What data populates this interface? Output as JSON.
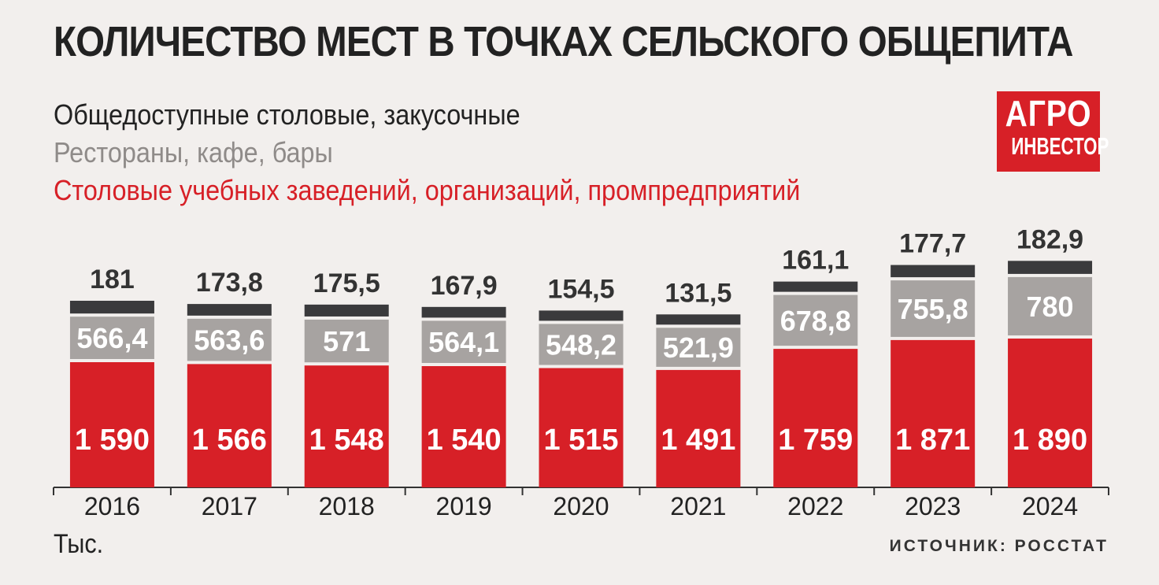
{
  "colors": {
    "dark": "#3a3a3c",
    "gray": "#a7a3a1",
    "red": "#d72027",
    "text": "#222222",
    "legend_gray": "#8f8b89"
  },
  "logo": {
    "line1": "АГРО",
    "line2": "ИНВЕСТОР"
  },
  "unit_label": "Тыс.",
  "source": "ИСТОЧНИК: РОССТАТ",
  "chart_data": {
    "type": "bar",
    "stacked": true,
    "title": "КОЛИЧЕСТВО МЕСТ В ТОЧКАХ СЕЛЬСКОГО ОБЩЕПИТА",
    "categories": [
      "2016",
      "2017",
      "2018",
      "2019",
      "2020",
      "2021",
      "2022",
      "2023",
      "2024"
    ],
    "series": [
      {
        "name": "Столовые учебных заведений, организаций, промпредприятий",
        "color": "#d72027",
        "values": [
          1590,
          1566,
          1548,
          1540,
          1515,
          1491,
          1759,
          1871,
          1890
        ],
        "labels": [
          "1 590",
          "1 566",
          "1 548",
          "1 540",
          "1 515",
          "1 491",
          "1 759",
          "1 871",
          "1 890"
        ]
      },
      {
        "name": "Рестораны, кафе, бары",
        "color": "#a7a3a1",
        "values": [
          566.4,
          563.6,
          571,
          564.1,
          548.2,
          521.9,
          678.8,
          755.8,
          780
        ],
        "labels": [
          "566,4",
          "563,6",
          "571",
          "564,1",
          "548,2",
          "521,9",
          "678,8",
          "755,8",
          "780"
        ]
      },
      {
        "name": "Общедоступные столовые, закусочные",
        "color": "#3a3a3c",
        "values": [
          181,
          173.8,
          175.5,
          167.9,
          154.5,
          131.5,
          161.1,
          177.7,
          182.9
        ],
        "labels": [
          "181",
          "173,8",
          "175,5",
          "167,9",
          "154,5",
          "131,5",
          "161,1",
          "177,7",
          "182,9"
        ]
      }
    ],
    "legend_order": [
      {
        "name": "Общедоступные столовые, закусочные",
        "color": "#222222"
      },
      {
        "name": "Рестораны, кафе, бары",
        "color": "#8f8b89"
      },
      {
        "name": "Столовые учебных заведений, организаций, промпредприятий",
        "color": "#d72027"
      }
    ],
    "legend_position": "top-left",
    "grid": false,
    "ylabel": "",
    "xlabel": ""
  }
}
